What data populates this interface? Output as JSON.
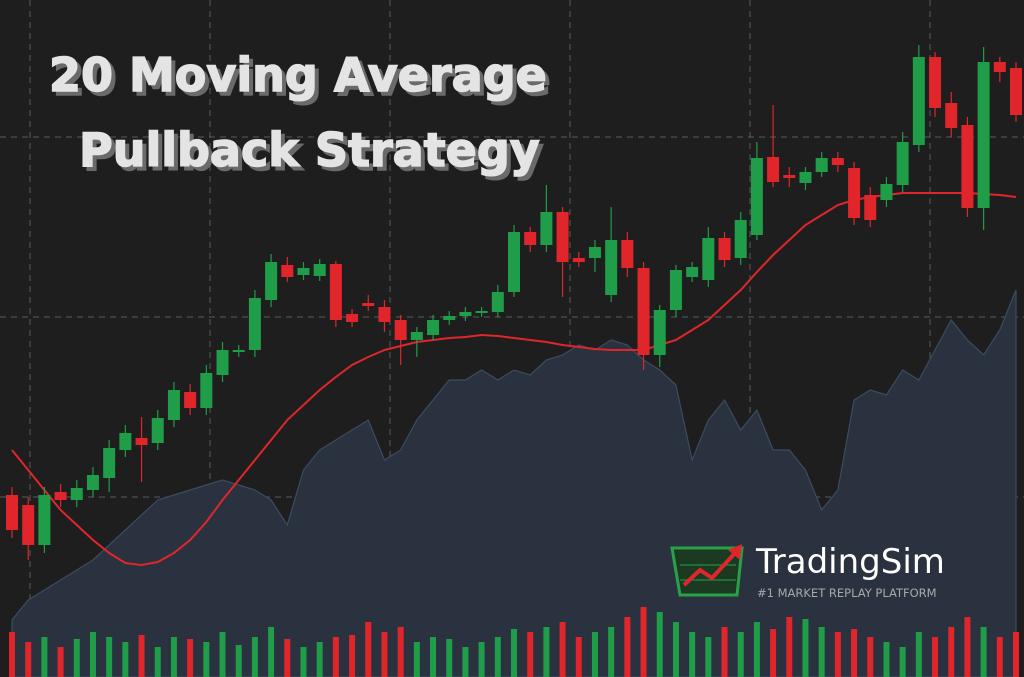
{
  "chart_data": {
    "type": "candlestick",
    "title": [
      "20 Moving Average",
      "Pullback Strategy"
    ],
    "brand": "TradingSim",
    "tagline": "#1 MARKET REPLAY PLATFORM",
    "up_color": "#1f9d48",
    "down_color": "#e0262b",
    "ylim": [
      0,
      677
    ],
    "open": [
      182,
      172,
      132,
      185,
      177,
      187,
      199,
      227,
      239,
      234,
      257,
      285,
      269,
      302,
      325,
      327,
      377,
      412,
      402,
      401,
      413,
      363,
      374,
      370,
      357,
      337,
      342,
      357,
      361,
      364,
      365,
      385,
      445,
      432,
      465,
      419,
      419,
      382,
      437,
      409,
      322,
      367,
      400,
      397,
      439,
      419,
      442,
      520,
      502,
      494,
      505,
      519,
      509,
      482,
      477,
      492,
      532,
      620,
      574,
      552,
      469,
      615,
      609
    ],
    "high": [
      190,
      180,
      190,
      193,
      197,
      210,
      237,
      252,
      260,
      267,
      295,
      293,
      312,
      335,
      332,
      387,
      423,
      420,
      415,
      418,
      416,
      368,
      382,
      377,
      362,
      350,
      362,
      366,
      370,
      370,
      392,
      452,
      450,
      492,
      470,
      425,
      437,
      470,
      445,
      415,
      372,
      412,
      415,
      450,
      445,
      465,
      535,
      572,
      510,
      510,
      525,
      525,
      515,
      490,
      500,
      545,
      632,
      625,
      585,
      560,
      630,
      620,
      615
    ],
    "low": [
      139,
      117,
      124,
      170,
      170,
      180,
      185,
      220,
      195,
      227,
      250,
      262,
      262,
      295,
      320,
      320,
      370,
      395,
      397,
      396,
      350,
      350,
      366,
      345,
      312,
      320,
      337,
      352,
      356,
      360,
      360,
      380,
      425,
      425,
      380,
      410,
      405,
      375,
      400,
      307,
      310,
      360,
      395,
      390,
      410,
      412,
      437,
      490,
      490,
      487,
      500,
      505,
      452,
      450,
      470,
      485,
      525,
      560,
      540,
      460,
      447,
      595,
      555
    ],
    "close": [
      147,
      132,
      182,
      177,
      189,
      202,
      229,
      244,
      232,
      259,
      287,
      269,
      304,
      327,
      327,
      379,
      415,
      400,
      409,
      413,
      357,
      355,
      371,
      355,
      337,
      345,
      357,
      361,
      365,
      366,
      385,
      445,
      432,
      465,
      415,
      415,
      430,
      437,
      409,
      322,
      367,
      407,
      410,
      439,
      417,
      457,
      519,
      495,
      499,
      505,
      519,
      512,
      459,
      457,
      493,
      535,
      620,
      569,
      549,
      469,
      615,
      605,
      562
    ],
    "ma": {
      "color": "#e0262b",
      "values": [
        227,
        207,
        187,
        167,
        152,
        137,
        124,
        114,
        112,
        115,
        124,
        137,
        155,
        177,
        197,
        217,
        237,
        257,
        272,
        287,
        300,
        312,
        320,
        327,
        331,
        335,
        337,
        339,
        340,
        342,
        341,
        339,
        337,
        335,
        332,
        330,
        328,
        327,
        327,
        327,
        332,
        337,
        347,
        357,
        372,
        387,
        405,
        422,
        437,
        452,
        462,
        472,
        477,
        480,
        482,
        484,
        484,
        484,
        484,
        484,
        483,
        482,
        480
      ]
    },
    "area": {
      "color": "#29323e",
      "values": [
        57,
        77,
        87,
        97,
        107,
        117,
        132,
        147,
        162,
        177,
        182,
        187,
        192,
        197,
        192,
        187,
        177,
        152,
        207,
        227,
        237,
        247,
        257,
        217,
        227,
        257,
        277,
        297,
        297,
        307,
        297,
        307,
        302,
        317,
        322,
        332,
        327,
        337,
        332,
        317,
        307,
        292,
        217,
        257,
        277,
        247,
        267,
        227,
        227,
        207,
        167,
        187,
        277,
        287,
        282,
        307,
        297,
        327,
        357,
        337,
        322,
        347,
        387
      ]
    },
    "volume": {
      "values": [
        45,
        35,
        40,
        30,
        38,
        45,
        40,
        35,
        42,
        30,
        40,
        38,
        35,
        45,
        32,
        40,
        50,
        38,
        30,
        35,
        40,
        42,
        55,
        45,
        50,
        35,
        40,
        38,
        30,
        35,
        40,
        48,
        45,
        50,
        55,
        40,
        45,
        50,
        60,
        70,
        65,
        55,
        45,
        40,
        50,
        45,
        55,
        48,
        60,
        58,
        50,
        45,
        48,
        40,
        35,
        30,
        45,
        40,
        50,
        60,
        50,
        40,
        45
      ]
    }
  }
}
